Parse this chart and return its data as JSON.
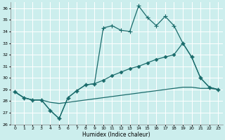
{
  "xlabel": "Humidex (Indice chaleur)",
  "background_color": "#cceeed",
  "grid_color": "#ffffff",
  "line_color": "#1a6b6b",
  "xlim": [
    -0.5,
    23.5
  ],
  "ylim": [
    26,
    36.5
  ],
  "xticks": [
    0,
    1,
    2,
    3,
    4,
    5,
    6,
    7,
    8,
    9,
    10,
    11,
    12,
    13,
    14,
    15,
    16,
    17,
    18,
    19,
    20,
    21,
    22,
    23
  ],
  "yticks": [
    26,
    27,
    28,
    29,
    30,
    31,
    32,
    33,
    34,
    35,
    36
  ],
  "series_flat": {
    "x": [
      0,
      1,
      2,
      3,
      4,
      5,
      6,
      7,
      8,
      9,
      10,
      11,
      12,
      13,
      14,
      15,
      16,
      17,
      18,
      19,
      20,
      21,
      22,
      23
    ],
    "y": [
      28.8,
      28.3,
      28.1,
      28.1,
      27.9,
      27.8,
      27.9,
      28.0,
      28.1,
      28.2,
      28.3,
      28.4,
      28.5,
      28.6,
      28.7,
      28.8,
      28.9,
      29.0,
      29.1,
      29.2,
      29.2,
      29.1,
      29.1,
      29.0
    ]
  },
  "series_mid": {
    "x": [
      0,
      1,
      2,
      3,
      4,
      5,
      6,
      7,
      8,
      9,
      10,
      11,
      12,
      13,
      14,
      15,
      16,
      17,
      18,
      19,
      20,
      21,
      22,
      23
    ],
    "y": [
      28.8,
      28.3,
      28.1,
      28.1,
      27.2,
      26.5,
      28.3,
      28.9,
      29.4,
      29.5,
      29.8,
      30.2,
      30.5,
      30.8,
      31.0,
      31.3,
      31.6,
      31.8,
      32.0,
      33.0,
      31.8,
      30.0,
      29.2,
      29.0
    ]
  },
  "series_top": {
    "x": [
      0,
      1,
      2,
      3,
      4,
      5,
      6,
      7,
      8,
      9,
      10,
      11,
      12,
      13,
      14,
      15,
      16,
      17,
      18,
      19,
      20,
      21,
      22,
      23
    ],
    "y": [
      28.8,
      28.3,
      28.1,
      28.1,
      27.2,
      26.5,
      28.3,
      28.9,
      29.4,
      29.5,
      34.3,
      34.5,
      34.1,
      34.0,
      36.2,
      35.2,
      34.5,
      35.3,
      34.5,
      33.0,
      31.8,
      30.0,
      29.2,
      29.0
    ]
  }
}
